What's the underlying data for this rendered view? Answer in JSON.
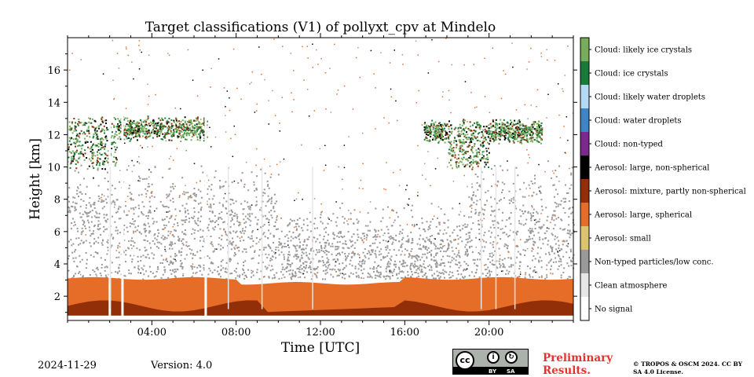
{
  "chart_data": {
    "type": "heatmap",
    "title": "Target classifications (V1) of pollyxt_cpv at Mindelo",
    "xlabel": "Time [UTC]",
    "ylabel": "Height [km]",
    "xlim": [
      0,
      24
    ],
    "ylim": [
      0.5,
      18
    ],
    "x_ticks": [
      4,
      8,
      12,
      16,
      20
    ],
    "x_tick_labels": [
      "04:00",
      "08:00",
      "12:00",
      "16:00",
      "20:00"
    ],
    "y_ticks": [
      2,
      4,
      6,
      8,
      10,
      12,
      14,
      16
    ],
    "y_tick_labels": [
      "2",
      "4",
      "6",
      "8",
      "10",
      "12",
      "14",
      "16"
    ],
    "legend": "colorbar right",
    "classes": [
      {
        "label": "No signal",
        "color": "#ffffff"
      },
      {
        "label": "Clean atmosphere",
        "color": "#e6e6e6"
      },
      {
        "label": "Non-typed particles/low conc.",
        "color": "#999999"
      },
      {
        "label": "Aerosol: small",
        "color": "#dcc36f"
      },
      {
        "label": "Aerosol: large, spherical",
        "color": "#e66d28"
      },
      {
        "label": "Aerosol: mixture, partly non-spherical",
        "color": "#922e08"
      },
      {
        "label": "Aerosol: large, non-spherical",
        "color": "#000000"
      },
      {
        "label": "Cloud: non-typed",
        "color": "#7b2a8b"
      },
      {
        "label": "Cloud: water droplets",
        "color": "#3d85c5"
      },
      {
        "label": "Cloud: likely water droplets",
        "color": "#b3d9f5"
      },
      {
        "label": "Cloud: ice crystals",
        "color": "#1a7a3a"
      },
      {
        "label": "Cloud: likely ice crystals",
        "color": "#76ad5b"
      }
    ],
    "regions": [
      {
        "class": "Aerosol: mixture, partly non-spherical",
        "from_hour": 0,
        "to_hour": 24,
        "bottom_km": 0.8,
        "top_km": 2.2
      },
      {
        "class": "Aerosol: large, spherical",
        "from_hour": 0,
        "to_hour": 24,
        "bottom_km": 1.2,
        "top_km": 3.1
      },
      {
        "class": "Non-typed particles/low conc.",
        "from_hour": 0,
        "to_hour": 24,
        "bottom_km": 3.1,
        "top_km": 10.5
      },
      {
        "class": "Cloud: likely ice crystals",
        "from_hour": 0.0,
        "to_hour": 6.6,
        "bottom_km": 9.0,
        "top_km": 13.2
      },
      {
        "class": "Cloud: likely ice crystals",
        "from_hour": 16.9,
        "to_hour": 22.5,
        "bottom_km": 9.8,
        "top_km": 13.0
      }
    ]
  },
  "footer": {
    "date": "2024-11-29",
    "version": "Version: 4.0",
    "preliminary": "Preliminary Results.",
    "copyright": "© TROPOS & OSCM 2024. CC BY SA 4.0 License.",
    "license_badge": {
      "cc": "cc",
      "by": "BY",
      "sa": "SA"
    }
  }
}
